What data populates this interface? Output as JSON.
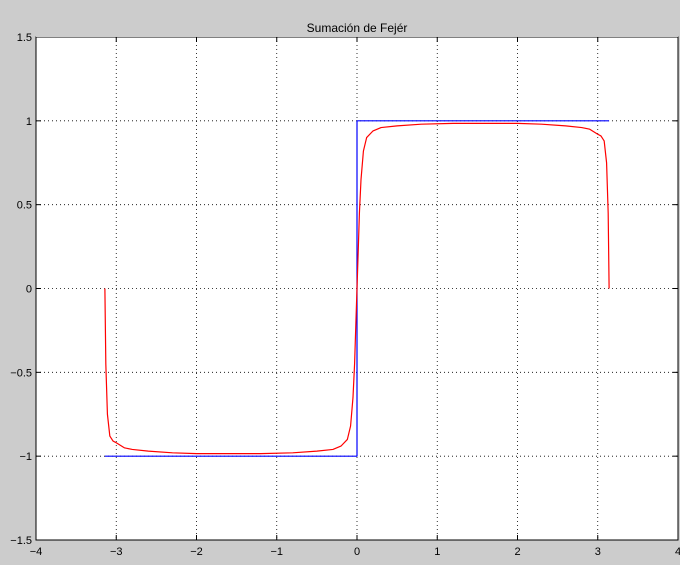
{
  "chart_data": {
    "type": "line",
    "title": "Sumación de Fejér",
    "xlabel": "",
    "ylabel": "",
    "xlim": [
      -4,
      4
    ],
    "ylim": [
      -1.5,
      1.5
    ],
    "grid": true,
    "x_ticks": [
      -4,
      -3,
      -2,
      -1,
      0,
      1,
      2,
      3,
      4
    ],
    "y_ticks": [
      -1.5,
      -1,
      -0.5,
      0,
      0.5,
      1,
      1.5
    ],
    "x_tick_labels": [
      "−4",
      "−3",
      "−2",
      "−1",
      "0",
      "1",
      "2",
      "3",
      "4"
    ],
    "y_tick_labels": [
      "−1.5",
      "−1",
      "−0.5",
      "0",
      "0.5",
      "1",
      "1.5"
    ],
    "colors": {
      "square_wave": "#0000ff",
      "fejer_sum": "#ff0000",
      "background": "#cccccc",
      "axes": "#ffffff"
    },
    "series": [
      {
        "color": "#0000ff",
        "x": [
          -3.1416,
          0,
          0,
          3.1416
        ],
        "y": [
          -1,
          -1,
          1,
          1
        ]
      },
      {
        "color": "#ff0000",
        "x": [
          -3.1416,
          -3.13,
          -3.11,
          -3.08,
          -3.04,
          -3.0,
          -2.9,
          -2.8,
          -2.6,
          -2.3,
          -2.0,
          -1.6,
          -1.2,
          -0.8,
          -0.5,
          -0.3,
          -0.2,
          -0.12,
          -0.08,
          -0.05,
          -0.03,
          -0.015,
          0,
          0.015,
          0.03,
          0.05,
          0.08,
          0.12,
          0.2,
          0.3,
          0.5,
          0.8,
          1.2,
          1.6,
          2.0,
          2.3,
          2.6,
          2.8,
          2.9,
          3.0,
          3.04,
          3.08,
          3.11,
          3.13,
          3.1416
        ],
        "y": [
          0,
          -0.45,
          -0.75,
          -0.88,
          -0.91,
          -0.92,
          -0.95,
          -0.96,
          -0.97,
          -0.98,
          -0.985,
          -0.985,
          -0.985,
          -0.98,
          -0.97,
          -0.96,
          -0.94,
          -0.9,
          -0.82,
          -0.65,
          -0.45,
          -0.22,
          0,
          0.22,
          0.45,
          0.65,
          0.82,
          0.9,
          0.94,
          0.96,
          0.97,
          0.98,
          0.985,
          0.985,
          0.985,
          0.98,
          0.97,
          0.96,
          0.95,
          0.92,
          0.91,
          0.88,
          0.75,
          0.45,
          0
        ]
      }
    ]
  }
}
